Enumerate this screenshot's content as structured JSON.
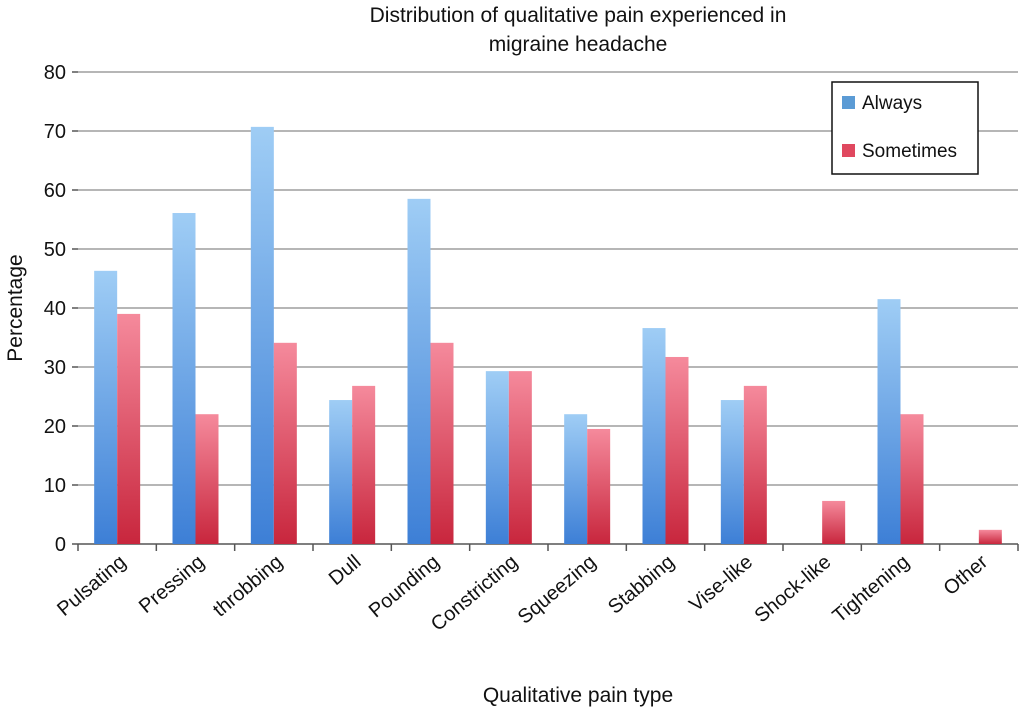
{
  "chart_data": {
    "type": "bar",
    "title_lines": [
      "Distribution of qualitative pain experienced in",
      "migraine headache"
    ],
    "xlabel": "Qualitative pain type",
    "ylabel": "Percentage",
    "ylim": [
      0,
      80
    ],
    "yticks": [
      0,
      10,
      20,
      30,
      40,
      50,
      60,
      70,
      80
    ],
    "grid": true,
    "legend_position": "top-right",
    "categories": [
      "Pulsating",
      "Pressing",
      "throbbing",
      "Dull",
      "Pounding",
      "Constricting",
      "Squeezing",
      "Stabbing",
      "Vise-like",
      "Shock-like",
      "Tightening",
      "Other"
    ],
    "series": [
      {
        "name": "Always",
        "color": "#5b9bd5",
        "values": [
          46.3,
          56.1,
          70.7,
          24.4,
          58.5,
          29.3,
          22.0,
          36.6,
          24.4,
          0,
          41.5,
          0
        ]
      },
      {
        "name": "Sometimes",
        "color": "#e0485f",
        "values": [
          39.0,
          22.0,
          34.1,
          26.8,
          34.1,
          29.3,
          19.5,
          31.7,
          26.8,
          7.3,
          22.0,
          2.4
        ]
      }
    ]
  }
}
